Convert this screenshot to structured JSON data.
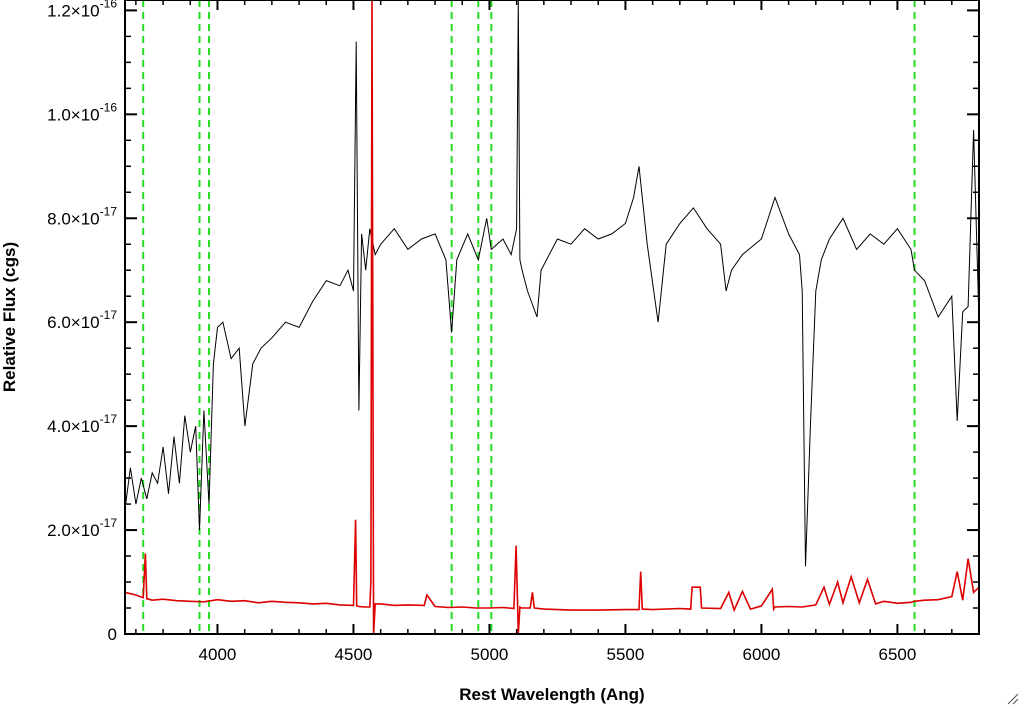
{
  "chart_data": {
    "type": "line",
    "xlabel": "Rest Wavelength (Ang)",
    "ylabel": "Relative Flux (cgs)",
    "xlim": [
      3660,
      6800
    ],
    "ylim": [
      0,
      1.22e-16
    ],
    "x_ticks": [
      {
        "value": 4000,
        "label": "4000"
      },
      {
        "value": 4500,
        "label": "4500"
      },
      {
        "value": 5000,
        "label": "5000"
      },
      {
        "value": 5500,
        "label": "5500"
      },
      {
        "value": 6000,
        "label": "6000"
      },
      {
        "value": 6500,
        "label": "6500"
      }
    ],
    "y_ticks": [
      {
        "value": 0,
        "mant": "0",
        "exp": ""
      },
      {
        "value": 2e-17,
        "mant": "2.0×10",
        "exp": "-17"
      },
      {
        "value": 4e-17,
        "mant": "4.0×10",
        "exp": "-17"
      },
      {
        "value": 6e-17,
        "mant": "6.0×10",
        "exp": "-17"
      },
      {
        "value": 8e-17,
        "mant": "8.0×10",
        "exp": "-17"
      },
      {
        "value": 1e-16,
        "mant": "1.0×10",
        "exp": "-16"
      },
      {
        "value": 1.2e-16,
        "mant": "1.2×10",
        "exp": "-16"
      }
    ],
    "reference_lines": [
      3727,
      3934,
      3969,
      4861,
      4959,
      5007,
      6563
    ],
    "grid": false,
    "legend": "none",
    "series": [
      {
        "color": "#000000",
        "x": [
          3660,
          3680,
          3700,
          3720,
          3740,
          3760,
          3780,
          3800,
          3820,
          3840,
          3860,
          3880,
          3900,
          3920,
          3934,
          3950,
          3969,
          3985,
          4000,
          4020,
          4050,
          4080,
          4101,
          4130,
          4160,
          4200,
          4250,
          4300,
          4350,
          4400,
          4450,
          4480,
          4500,
          4510,
          4520,
          4530,
          4545,
          4560,
          4580,
          4600,
          4650,
          4700,
          4750,
          4800,
          4840,
          4861,
          4880,
          4920,
          4959,
          4990,
          5007,
          5050,
          5080,
          5100,
          5106,
          5112,
          5120,
          5140,
          5175,
          5190,
          5250,
          5300,
          5350,
          5400,
          5450,
          5500,
          5530,
          5550,
          5580,
          5620,
          5650,
          5700,
          5750,
          5800,
          5850,
          5870,
          5890,
          5930,
          6000,
          6050,
          6100,
          6140,
          6150,
          6162,
          6180,
          6200,
          6220,
          6250,
          6300,
          6350,
          6400,
          6450,
          6500,
          6550,
          6563,
          6600,
          6650,
          6700,
          6720,
          6740,
          6760,
          6780,
          6800
        ],
        "y": [
          2.4e-17,
          3.2e-17,
          2.5e-17,
          3e-17,
          2.6e-17,
          3.1e-17,
          2.9e-17,
          3.6e-17,
          2.7e-17,
          3.8e-17,
          2.9e-17,
          4.2e-17,
          3.5e-17,
          4e-17,
          2e-17,
          4.3e-17,
          2.5e-17,
          5.2e-17,
          5.9e-17,
          6e-17,
          5.3e-17,
          5.5e-17,
          4e-17,
          5.2e-17,
          5.5e-17,
          5.7e-17,
          6e-17,
          5.9e-17,
          6.4e-17,
          6.8e-17,
          6.7e-17,
          7e-17,
          6.6e-17,
          1.14e-16,
          4.3e-17,
          7.7e-17,
          7e-17,
          7.8e-17,
          7.3e-17,
          7.5e-17,
          7.8e-17,
          7.4e-17,
          7.6e-17,
          7.7e-17,
          7.2e-17,
          5.8e-17,
          7.2e-17,
          7.7e-17,
          7.2e-17,
          8e-17,
          7.4e-17,
          7.6e-17,
          7.3e-17,
          7.8e-17,
          1.22e-16,
          7.2e-17,
          7e-17,
          6.6e-17,
          6.1e-17,
          7e-17,
          7.6e-17,
          7.5e-17,
          7.8e-17,
          7.6e-17,
          7.7e-17,
          7.9e-17,
          8.4e-17,
          9e-17,
          7.5e-17,
          6e-17,
          7.5e-17,
          7.9e-17,
          8.2e-17,
          7.8e-17,
          7.5e-17,
          6.6e-17,
          7e-17,
          7.3e-17,
          7.6e-17,
          8.4e-17,
          7.7e-17,
          7.3e-17,
          6.6e-17,
          1.3e-17,
          4e-17,
          6.6e-17,
          7.2e-17,
          7.6e-17,
          8e-17,
          7.4e-17,
          7.7e-17,
          7.5e-17,
          7.8e-17,
          7.4e-17,
          7e-17,
          6.8e-17,
          6.1e-17,
          6.5e-17,
          4.1e-17,
          6.2e-17,
          6.3e-17,
          9.7e-17,
          6e-17
        ]
      },
      {
        "color": "#dd0000",
        "x": [
          3660,
          3700,
          3727,
          3735,
          3740,
          3760,
          3800,
          3850,
          3900,
          3950,
          4000,
          4050,
          4100,
          4150,
          4200,
          4250,
          4300,
          4350,
          4400,
          4450,
          4500,
          4508,
          4512,
          4520,
          4540,
          4560,
          4564,
          4568,
          4574,
          4580,
          4600,
          4650,
          4700,
          4760,
          4770,
          4800,
          4850,
          4900,
          4950,
          5000,
          5050,
          5090,
          5098,
          5106,
          5112,
          5118,
          5150,
          5158,
          5165,
          5200,
          5300,
          5400,
          5500,
          5550,
          5556,
          5562,
          5600,
          5700,
          5740,
          5745,
          5775,
          5780,
          5850,
          5880,
          5900,
          5930,
          5960,
          6000,
          6040,
          6045,
          6050,
          6100,
          6150,
          6200,
          6230,
          6250,
          6280,
          6300,
          6330,
          6360,
          6390,
          6420,
          6450,
          6500,
          6550,
          6563,
          6600,
          6650,
          6700,
          6720,
          6740,
          6760,
          6780,
          6800
        ],
        "y": [
          8e-18,
          7.5e-18,
          7e-18,
          1.55e-17,
          6.8e-18,
          6.5e-18,
          6.7e-18,
          6.4e-18,
          6.3e-18,
          6.2e-18,
          6.6e-18,
          6.3e-18,
          6.4e-18,
          6e-18,
          6.3e-18,
          6.1e-18,
          6e-18,
          5.8e-18,
          5.9e-18,
          5.6e-18,
          5.5e-18,
          2.2e-17,
          5.4e-18,
          5.3e-18,
          5.2e-18,
          5.2e-18,
          1e-17,
          1.22e-16,
          0,
          5.8e-18,
          5.8e-18,
          5.5e-18,
          5.6e-18,
          5.5e-18,
          7.5e-18,
          5.3e-18,
          5.1e-18,
          5.2e-18,
          5e-18,
          5e-18,
          5.1e-18,
          4.9e-18,
          1.7e-17,
          0,
          5.2e-18,
          5e-18,
          5e-18,
          8e-18,
          5e-18,
          4.8e-18,
          4.6e-18,
          4.6e-18,
          4.7e-18,
          4.7e-18,
          1.2e-17,
          4.8e-18,
          4.7e-18,
          4.9e-18,
          4.8e-18,
          9e-18,
          9e-18,
          5e-18,
          4.9e-18,
          8e-18,
          4.6e-18,
          8.2e-18,
          4.8e-18,
          5.4e-18,
          8.6e-18,
          4.8e-18,
          5.2e-18,
          5.3e-18,
          5.2e-18,
          5.6e-18,
          9e-18,
          5.7e-18,
          1e-17,
          6e-18,
          1.1e-17,
          6e-18,
          1.05e-17,
          5.8e-18,
          6.3e-18,
          5.9e-18,
          6.1e-18,
          6.3e-18,
          6.5e-18,
          6.6e-18,
          7.2e-18,
          1.2e-17,
          6.5e-18,
          1.45e-17,
          8e-18,
          9e-18
        ]
      }
    ]
  }
}
